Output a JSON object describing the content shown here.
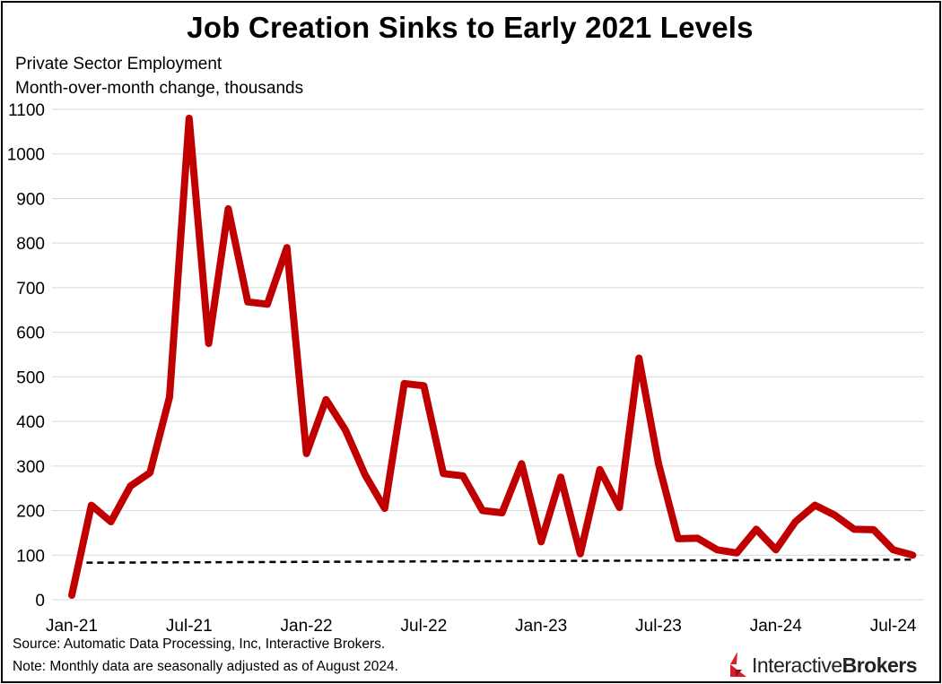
{
  "title": "Job Creation Sinks to Early 2021 Levels",
  "subtitle_line1": "Private Sector Employment",
  "subtitle_line2": "Month-over-month change, thousands",
  "source_note": "Source: Automatic Data Processing, Inc, Interactive Brokers.",
  "data_note": "Note: Monthly data are seasonally adjusted as of August 2024.",
  "logo": {
    "part1": "Interactive",
    "part2": "Brokers",
    "icon": "interactive-brokers-logo-icon"
  },
  "colors": {
    "series": "#c00000",
    "trend": "#000000",
    "grid": "#d9d9d9"
  },
  "chart_data": {
    "type": "line",
    "title": "Job Creation Sinks to Early 2021 Levels",
    "ylabel": "Month-over-month change, thousands",
    "ylim": [
      0,
      1100
    ],
    "yticks": [
      0,
      100,
      200,
      300,
      400,
      500,
      600,
      700,
      800,
      900,
      1000,
      1100
    ],
    "xtick_labels": [
      "Jan-21",
      "Jul-21",
      "Jan-22",
      "Jul-22",
      "Jan-23",
      "Jul-23",
      "Jan-24",
      "Jul-24"
    ],
    "xtick_index": [
      0,
      6,
      12,
      18,
      24,
      30,
      36,
      42
    ],
    "grid": true,
    "series": [
      {
        "values": [
          10,
          212,
          175,
          255,
          285,
          455,
          1080,
          575,
          877,
          668,
          663,
          790,
          328,
          449,
          380,
          280,
          205,
          485,
          480,
          283,
          278,
          200,
          195,
          305,
          130,
          275,
          103,
          292,
          207,
          542,
          305,
          137,
          138,
          112,
          105,
          158,
          112,
          175,
          212,
          190,
          158,
          157,
          112,
          100
        ]
      },
      {
        "style": "dashed",
        "values_start": 83,
        "values_end": 90
      }
    ]
  }
}
